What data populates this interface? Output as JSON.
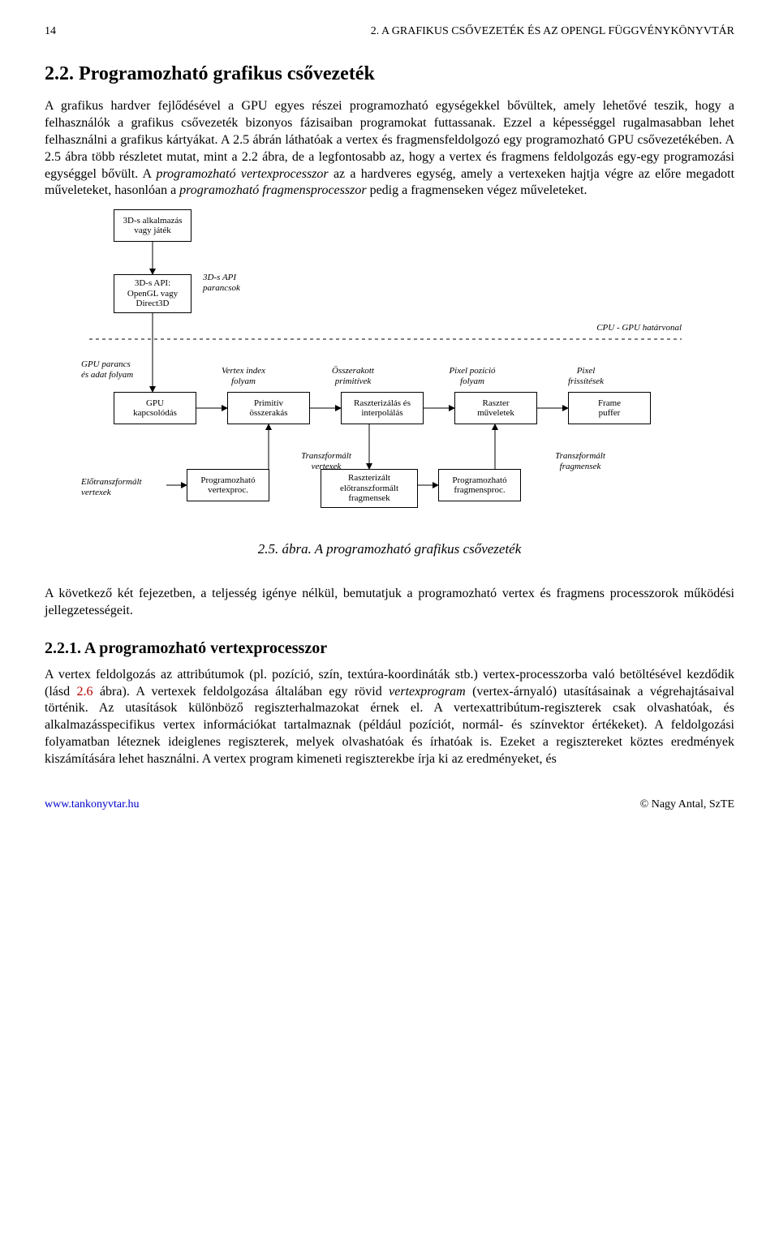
{
  "header": {
    "page_no": "14",
    "running": "2. A GRAFIKUS CSŐVEZETÉK ÉS AZ OPENGL FÜGGVÉNYKÖNYVTÁR"
  },
  "section": {
    "title": "2.2.  Programozható grafikus csővezeték",
    "p1": "A grafikus hardver fejlődésével a GPU egyes részei programozható egységekkel bővültek, amely lehetővé teszik, hogy a felhasználók a grafikus csővezeték bizonyos fázisaiban programokat futtassanak. Ezzel a képességgel rugalmasabban lehet felhasználni a grafikus kártyákat. A 2.5 ábrán láthatóak a vertex és fragmensfeldolgozó egy programozható GPU csővezetékében. A 2.5 ábra több részletet mutat, mint a 2.2 ábra, de a legfontosabb az, hogy a vertex és fragmens feldolgozás egy-egy programozási egységgel bővült. A ",
    "p1_em1": "programozható vertexprocesszor",
    "p1_mid": " az a hardveres egység, amely a vertexeken hajtja végre az előre megadott műveleteket, hasonlóan a ",
    "p1_em2": "programozható fragmensprocesszor",
    "p1_end": " pedig a fragmenseken végez műveleteket."
  },
  "diagram": {
    "b_app": "3D-s alkalmazás\nvagy játék",
    "b_api": "3D-s API:\nOpenGL vagy\nDirect3D",
    "l_apicmd": "3D-s API\nparancsok",
    "l_cpugpu": "CPU - GPU határvonal",
    "l_gpuparancs": "GPU parancs\nés adat folyam",
    "b_gpukap": "GPU\nkapcsolódás",
    "l_vertexindex": "Vertex index\nfolyam",
    "b_prim": "Primitív\nösszerakás",
    "l_osszerakott": "Összerakott\nprimitívek",
    "b_raszt": "Raszterizálás és\ninterpolálás",
    "l_pixelpoz": "Pixel pozíció\nfolyam",
    "b_rasztmuv": "Raszter\nműveletek",
    "l_pixelfriss": "Pixel\nfrissítések",
    "b_frame": "Frame\npuffer",
    "l_elotransz": "Előtranszformált\nvertexek",
    "b_vertproc": "Programozható\nvertexproc.",
    "l_transzvert": "Transzformált\nvertexek",
    "b_rasztfrag": "Raszterizált\nelőtranszformált\nfragmensek",
    "b_fragproc": "Programozható\nfragmensproc.",
    "l_transzfrag": "Transzformált\nfragmensek"
  },
  "figcaption": "2.5. ábra.  A programozható grafikus csővezeték",
  "para2": "A következő két fejezetben, a teljesség igénye nélkül, bemutatjuk a programozható vertex és fragmens processzorok működési jellegzetességeit.",
  "subsection": {
    "title": "2.2.1.  A programozható vertexprocesszor",
    "p_a": "A vertex feldolgozás az attribútumok (pl.  pozíció, szín, textúra-koordináták stb.)  vertex-processzorba való betöltésével kezdődik (lásd ",
    "p_figref": "2.6",
    "p_b": " ábra).  A vertexek feldolgozása általában egy rövid ",
    "p_em": "vertexprogram",
    "p_c": " (vertex-árnyaló) utasításainak a végrehajtásaival történik.   Az utasítások különböző regiszterhalmazokat érnek el.   A vertexattribútum-regiszterek csak olvashatóak, és alkalmazásspecifikus vertex információkat tartalmaznak (például pozíciót, normál- és színvektor értékeket).  A feldolgozási folyamatban léteznek ideiglenes regiszterek, melyek olvashatóak és írhatóak is.  Ezeket a regisztereket köztes eredmények kiszámítására lehet használni.    A vertex program kimeneti regiszterekbe írja ki az eredményeket, és"
  },
  "footer": {
    "url": "www.tankonyvtar.hu",
    "owner": "© Nagy Antal, SzTE"
  }
}
